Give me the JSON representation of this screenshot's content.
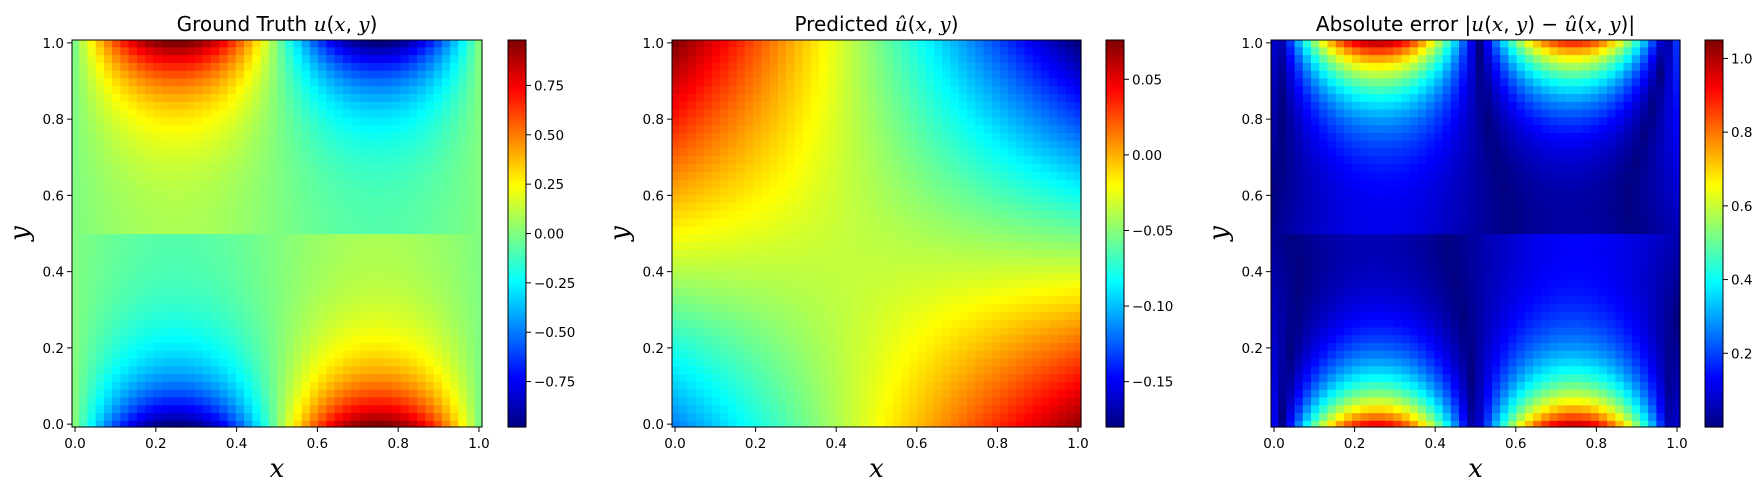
{
  "chart_data": [
    {
      "type": "heatmap",
      "field": "ground_truth",
      "title": "Ground Truth u(x, y)",
      "title_parts": [
        "Ground Truth ",
        "u",
        "(",
        "x",
        ", ",
        "y",
        ")"
      ],
      "xlabel": "x",
      "ylabel": "y",
      "xlim": [
        0.0,
        1.0
      ],
      "ylim": [
        0.0,
        1.0
      ],
      "x_ticks": [
        "0.0",
        "0.2",
        "0.4",
        "0.6",
        "0.8",
        "1.0"
      ],
      "y_ticks": [
        "0.0",
        "0.2",
        "0.4",
        "0.6",
        "0.8",
        "1.0"
      ],
      "grid_resolution": 50,
      "colormap": "jet",
      "color_range": [
        -0.98,
        0.98
      ],
      "colorbar_ticks": [
        "0.75",
        "0.50",
        "0.25",
        "0.00",
        "−0.25",
        "−0.50",
        "−0.75"
      ],
      "grid": false
    },
    {
      "type": "heatmap",
      "field": "predicted",
      "title": "Predicted û(x, y)",
      "title_parts": [
        "Predicted ",
        "û",
        "(",
        "x",
        ", ",
        "y",
        ")"
      ],
      "xlabel": "x",
      "ylabel": "y",
      "xlim": [
        0.0,
        1.0
      ],
      "ylim": [
        0.0,
        1.0
      ],
      "x_ticks": [
        "0.0",
        "0.2",
        "0.4",
        "0.6",
        "0.8",
        "1.0"
      ],
      "y_ticks": [
        "0.0",
        "0.2",
        "0.4",
        "0.6",
        "0.8",
        "1.0"
      ],
      "grid_resolution": 50,
      "colormap": "jet",
      "color_range": [
        -0.18,
        0.076
      ],
      "colorbar_ticks": [
        "0.05",
        "0.00",
        "−0.05",
        "−0.10",
        "−0.15"
      ],
      "grid": false
    },
    {
      "type": "heatmap",
      "field": "absolute_error",
      "title": "Absolute error |u(x, y) − û(x, y)|",
      "title_parts": [
        "Absolute error |",
        "u",
        "(",
        "x",
        ", ",
        "y",
        ") − ",
        "û",
        "(",
        "x",
        ", ",
        "y",
        ")|"
      ],
      "xlabel": "x",
      "ylabel": "y",
      "xlim": [
        0.0,
        1.0
      ],
      "ylim": [
        0.0,
        1.0
      ],
      "x_ticks": [
        "0.0",
        "0.2",
        "0.4",
        "0.6",
        "0.8",
        "1.0"
      ],
      "y_ticks": [
        "0.2",
        "0.4",
        "0.6",
        "0.8",
        "1.0"
      ],
      "grid_resolution": 50,
      "colormap": "jet",
      "color_range": [
        0.0,
        1.05
      ],
      "colorbar_ticks": [
        "1.0",
        "0.8",
        "0.6",
        "0.4",
        "0.2"
      ],
      "grid": false
    }
  ]
}
